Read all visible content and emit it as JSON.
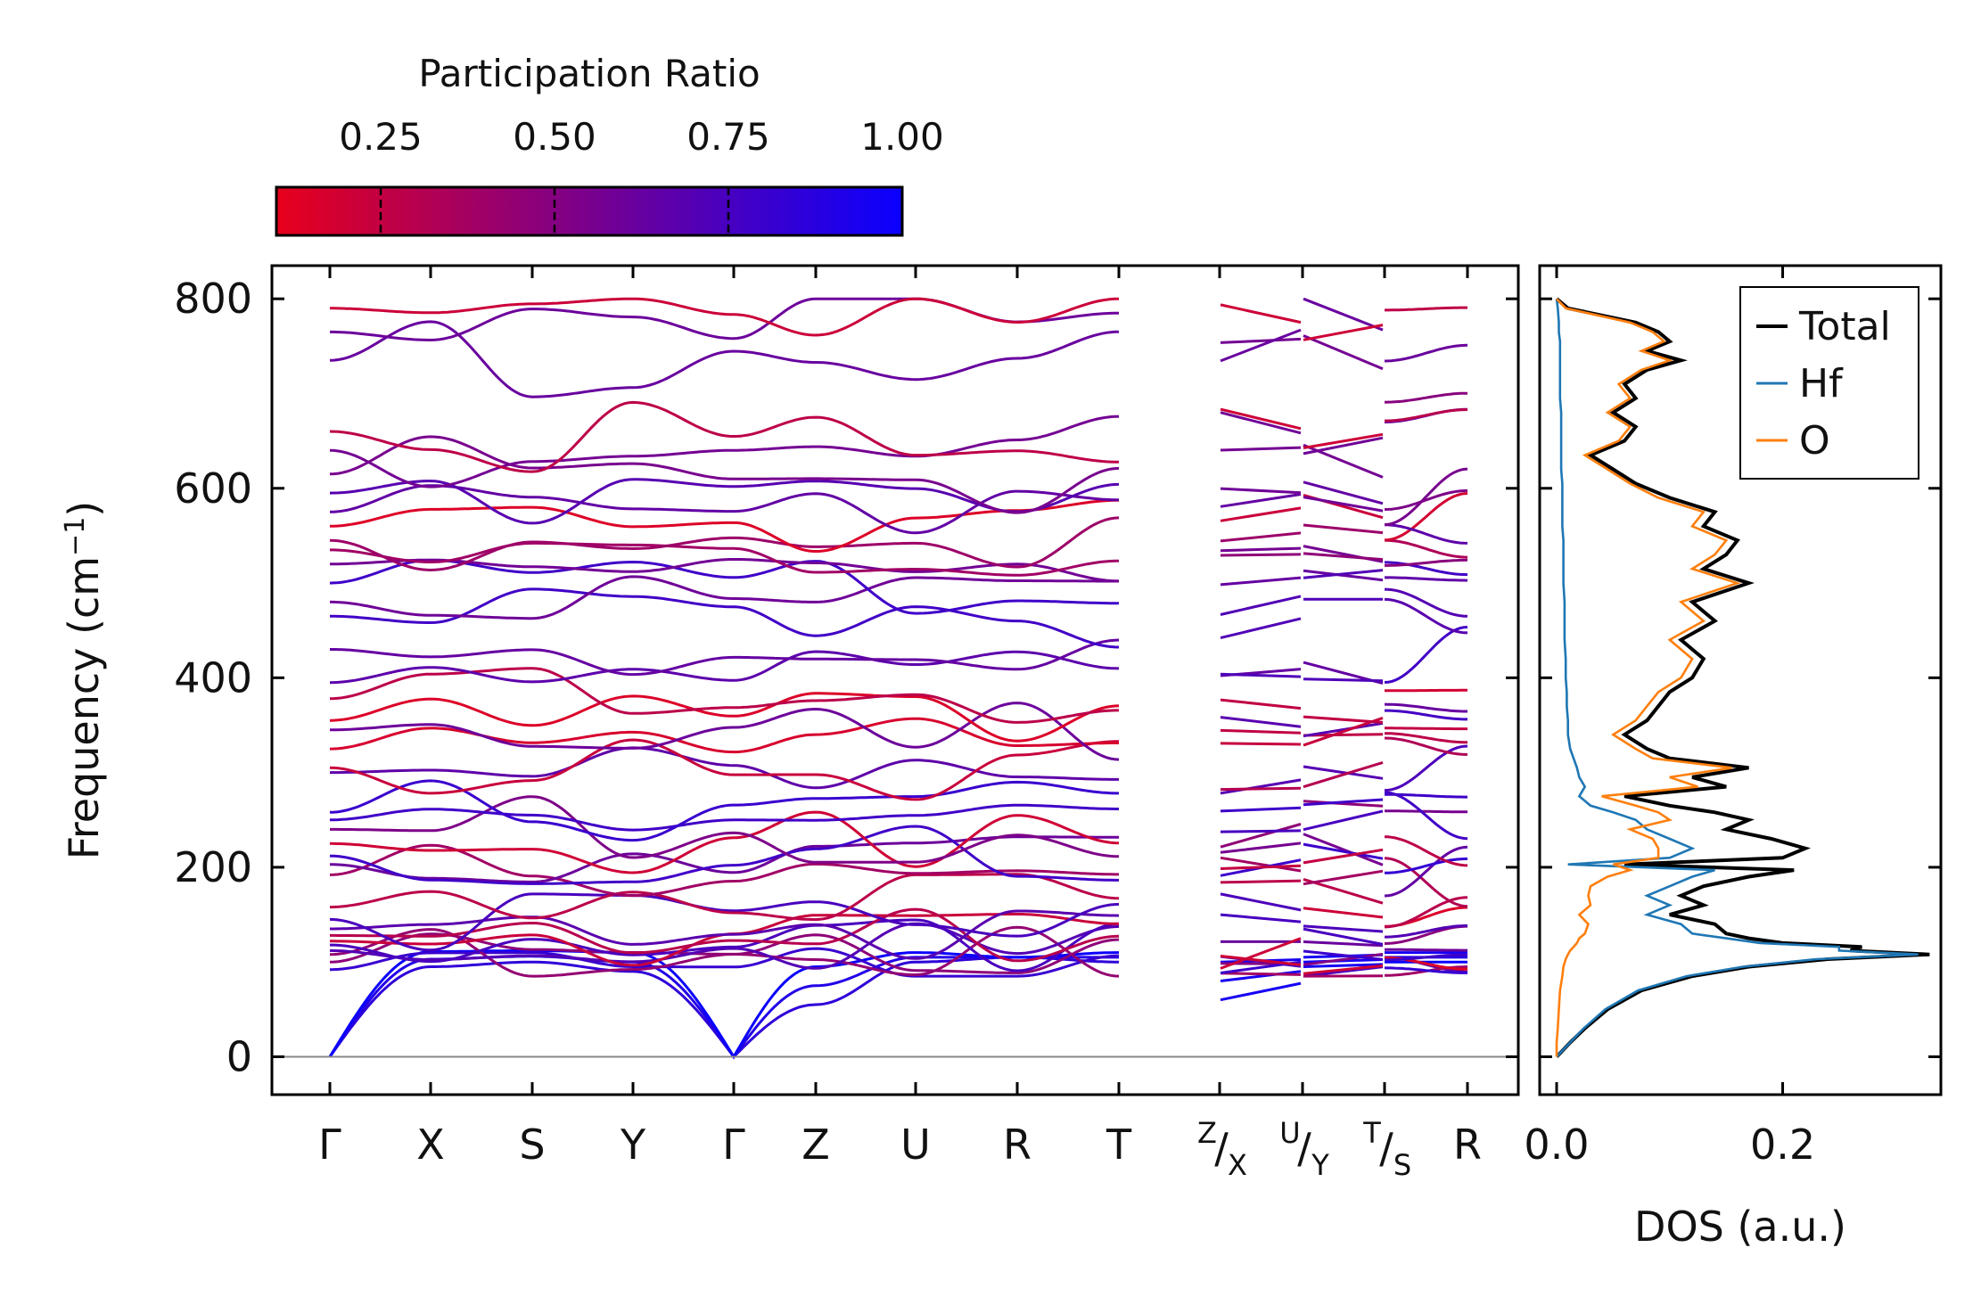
{
  "chart_data": [
    {
      "type": "line",
      "description_role": "phonon-band-structure",
      "ylabel": "Frequency (cm⁻¹)",
      "ylabel_text": "Frequency (cm",
      "ylabel_sup": "−1",
      "ylabel_close": ")",
      "ylim": [
        -40,
        835
      ],
      "yticks": [
        0,
        200,
        400,
        600,
        800
      ],
      "ytick_labels": [
        "0",
        "200",
        "400",
        "600",
        "800"
      ],
      "high_symmetry_points": [
        "Γ",
        "X",
        "S",
        "Y",
        "Γ",
        "Z",
        "U",
        "R",
        "T",
        "Z|X",
        "U|Y",
        "T|S",
        "R"
      ],
      "xtick_labels": [
        {
          "main": "Γ"
        },
        {
          "main": "X"
        },
        {
          "main": "S"
        },
        {
          "main": "Y"
        },
        {
          "main": "Γ"
        },
        {
          "main": "Z"
        },
        {
          "main": "U"
        },
        {
          "main": "R"
        },
        {
          "main": "T"
        },
        {
          "sup": "Z",
          "slash": "/",
          "sub": "X"
        },
        {
          "sup": "U",
          "slash": "/",
          "sub": "Y"
        },
        {
          "sup": "T",
          "slash": "/",
          "sub": "S"
        },
        {
          "main": "R"
        }
      ],
      "segment_breaks_after": [
        "T",
        "Z|X",
        "U|Y",
        "T|S"
      ],
      "gamma_frequencies": [
        0,
        0,
        0,
        92,
        100,
        108,
        112,
        118,
        122,
        128,
        135,
        145,
        158,
        192,
        203,
        212,
        225,
        240,
        250,
        258,
        300,
        305,
        325,
        345,
        355,
        378,
        395,
        430,
        465,
        480,
        500,
        520,
        535,
        545,
        560,
        575,
        595,
        615,
        640,
        660,
        735,
        765,
        790
      ],
      "colorbar": {
        "title": "Participation Ratio",
        "ticks": [
          0.25,
          0.5,
          0.75,
          1.0
        ],
        "tick_labels": [
          "0.25",
          "0.50",
          "0.75",
          "1.00"
        ],
        "range": [
          0.1,
          1.0
        ],
        "colors": [
          "#e8001c",
          "#0a00ff"
        ]
      }
    },
    {
      "type": "line",
      "description_role": "density-of-states",
      "xlabel": "DOS (a.u.)",
      "xlim": [
        -0.015,
        0.34
      ],
      "xticks": [
        0.0,
        0.2
      ],
      "xtick_labels": [
        "0.0",
        "0.2"
      ],
      "ylim": [
        -40,
        835
      ],
      "legend_placement": "top-right",
      "series": [
        {
          "name": "Total",
          "color": "#000000",
          "freq": [
            0,
            5,
            15,
            30,
            50,
            70,
            85,
            95,
            103,
            108,
            112,
            116,
            120,
            125,
            130,
            140,
            150,
            160,
            170,
            180,
            190,
            197,
            203,
            210,
            220,
            230,
            240,
            250,
            258,
            265,
            275,
            285,
            295,
            305,
            315,
            325,
            340,
            355,
            370,
            385,
            400,
            420,
            440,
            460,
            480,
            500,
            515,
            530,
            545,
            560,
            575,
            590,
            605,
            620,
            635,
            650,
            665,
            680,
            695,
            710,
            725,
            735,
            745,
            755,
            765,
            775,
            790,
            800
          ],
          "dos": [
            0.0,
            0.004,
            0.012,
            0.025,
            0.045,
            0.075,
            0.12,
            0.17,
            0.24,
            0.33,
            0.26,
            0.27,
            0.2,
            0.17,
            0.15,
            0.14,
            0.1,
            0.13,
            0.11,
            0.13,
            0.17,
            0.21,
            0.06,
            0.2,
            0.22,
            0.19,
            0.15,
            0.17,
            0.14,
            0.1,
            0.06,
            0.15,
            0.12,
            0.17,
            0.1,
            0.08,
            0.06,
            0.08,
            0.09,
            0.1,
            0.12,
            0.13,
            0.11,
            0.14,
            0.12,
            0.17,
            0.13,
            0.15,
            0.16,
            0.13,
            0.14,
            0.1,
            0.07,
            0.05,
            0.03,
            0.06,
            0.07,
            0.05,
            0.07,
            0.06,
            0.08,
            0.11,
            0.08,
            0.1,
            0.09,
            0.07,
            0.01,
            0.0
          ]
        },
        {
          "name": "Hf",
          "color": "#1f77b4",
          "freq": [
            0,
            5,
            15,
            30,
            50,
            70,
            85,
            95,
            103,
            108,
            112,
            116,
            120,
            125,
            130,
            140,
            150,
            160,
            170,
            180,
            190,
            197,
            203,
            210,
            220,
            230,
            240,
            250,
            258,
            265,
            275,
            285,
            295,
            305,
            315,
            325,
            340,
            355,
            370,
            385,
            400,
            420,
            440,
            460,
            480,
            500,
            515,
            530,
            545,
            560,
            575,
            590,
            605,
            620,
            635,
            650,
            665,
            680,
            695,
            710,
            725,
            735,
            745,
            755,
            765,
            775,
            790,
            800
          ],
          "dos": [
            0.0,
            0.004,
            0.012,
            0.024,
            0.043,
            0.072,
            0.115,
            0.165,
            0.23,
            0.32,
            0.25,
            0.25,
            0.18,
            0.15,
            0.12,
            0.11,
            0.08,
            0.1,
            0.08,
            0.1,
            0.12,
            0.14,
            0.01,
            0.1,
            0.12,
            0.1,
            0.08,
            0.07,
            0.05,
            0.03,
            0.02,
            0.025,
            0.02,
            0.018,
            0.015,
            0.012,
            0.01,
            0.01,
            0.009,
            0.009,
            0.008,
            0.008,
            0.007,
            0.007,
            0.007,
            0.006,
            0.006,
            0.006,
            0.006,
            0.005,
            0.005,
            0.005,
            0.005,
            0.004,
            0.004,
            0.004,
            0.004,
            0.004,
            0.003,
            0.003,
            0.003,
            0.003,
            0.003,
            0.003,
            0.002,
            0.002,
            0.001,
            0.0
          ]
        },
        {
          "name": "O",
          "color": "#ff7f0e",
          "freq": [
            0,
            5,
            15,
            30,
            50,
            70,
            85,
            95,
            103,
            108,
            112,
            116,
            120,
            125,
            130,
            140,
            150,
            160,
            170,
            180,
            190,
            197,
            203,
            210,
            220,
            230,
            240,
            250,
            258,
            265,
            275,
            285,
            295,
            305,
            315,
            325,
            340,
            355,
            370,
            385,
            400,
            420,
            440,
            460,
            480,
            500,
            515,
            530,
            545,
            560,
            575,
            590,
            605,
            620,
            635,
            650,
            665,
            680,
            695,
            710,
            725,
            735,
            745,
            755,
            765,
            775,
            790,
            800
          ],
          "dos": [
            0.0,
            0.0,
            0.0,
            0.001,
            0.002,
            0.003,
            0.005,
            0.006,
            0.008,
            0.01,
            0.012,
            0.015,
            0.018,
            0.02,
            0.025,
            0.028,
            0.02,
            0.03,
            0.028,
            0.03,
            0.045,
            0.065,
            0.05,
            0.09,
            0.09,
            0.085,
            0.065,
            0.1,
            0.09,
            0.07,
            0.04,
            0.125,
            0.1,
            0.155,
            0.085,
            0.07,
            0.05,
            0.07,
            0.08,
            0.09,
            0.11,
            0.12,
            0.1,
            0.13,
            0.11,
            0.16,
            0.12,
            0.14,
            0.15,
            0.12,
            0.13,
            0.09,
            0.065,
            0.045,
            0.025,
            0.055,
            0.065,
            0.045,
            0.065,
            0.055,
            0.075,
            0.1,
            0.075,
            0.095,
            0.085,
            0.065,
            0.008,
            0.0
          ]
        }
      ]
    }
  ]
}
